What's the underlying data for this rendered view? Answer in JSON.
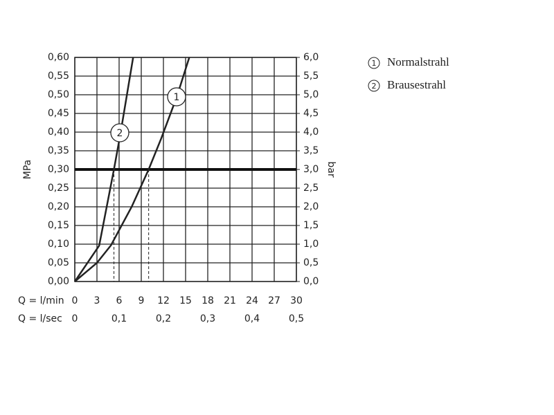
{
  "chart_data": {
    "type": "line",
    "y_label": "MPa",
    "y2_label": "bar",
    "x_label": "Q = l/min",
    "x2_label": "Q = l/sec",
    "xlim": [
      0,
      30
    ],
    "xticks": [
      0,
      3,
      6,
      9,
      12,
      15,
      18,
      21,
      24,
      27,
      30
    ],
    "x2lim": [
      0,
      0.5
    ],
    "x2ticks": [
      0,
      {
        "value": 0.1,
        "label": "0,1"
      },
      {
        "value": 0.2,
        "label": "0,2"
      },
      {
        "value": 0.3,
        "label": "0,3"
      },
      {
        "value": 0.4,
        "label": "0,4"
      },
      {
        "value": 0.5,
        "label": "0,5"
      }
    ],
    "ylim": [
      0,
      0.6
    ],
    "yticks": [
      {
        "value": 0,
        "label": "0,00"
      },
      {
        "value": 0.05,
        "label": "0,05"
      },
      {
        "value": 0.1,
        "label": "0,10"
      },
      {
        "value": 0.15,
        "label": "0,15"
      },
      {
        "value": 0.2,
        "label": "0,20"
      },
      {
        "value": 0.25,
        "label": "0,25"
      },
      {
        "value": 0.3,
        "label": "0,30"
      },
      {
        "value": 0.35,
        "label": "0,35"
      },
      {
        "value": 0.4,
        "label": "0,40"
      },
      {
        "value": 0.45,
        "label": "0,45"
      },
      {
        "value": 0.5,
        "label": "0,50"
      },
      {
        "value": 0.55,
        "label": "0,55"
      },
      {
        "value": 0.6,
        "label": "0,60"
      }
    ],
    "y2lim": [
      0,
      6
    ],
    "y2ticks": [
      {
        "value": 0,
        "label": "0,0"
      },
      {
        "value": 0.5,
        "label": "0,5"
      },
      {
        "value": 1,
        "label": "1,0"
      },
      {
        "value": 1.5,
        "label": "1,5"
      },
      {
        "value": 2,
        "label": "2,0"
      },
      {
        "value": 2.5,
        "label": "2,5"
      },
      {
        "value": 3,
        "label": "3,0"
      },
      {
        "value": 3.5,
        "label": "3,5"
      },
      {
        "value": 4,
        "label": "4,0"
      },
      {
        "value": 4.5,
        "label": "4,5"
      },
      {
        "value": 5,
        "label": "5,0"
      },
      {
        "value": 5.5,
        "label": "5,5"
      },
      {
        "value": 6,
        "label": "6,0"
      }
    ],
    "grid": true,
    "reference_line": 0.3,
    "reference_x": [
      5.3,
      10
    ],
    "series": [
      {
        "name": "Normalstrahl",
        "label": "1",
        "color": "#222222",
        "x": [
          0,
          3,
          4.9,
          7.7,
          10,
          11.7,
          13.8,
          15.5
        ],
        "values": [
          0,
          0.05,
          0.097,
          0.2,
          0.3,
          0.383,
          0.494,
          0.6
        ]
      },
      {
        "name": "Brausestrahl",
        "label": "2",
        "color": "#222222",
        "x": [
          0,
          3.3,
          5.3,
          6.2,
          7.9
        ],
        "values": [
          0,
          0.096,
          0.3,
          0.398,
          0.6
        ]
      }
    ]
  }
}
